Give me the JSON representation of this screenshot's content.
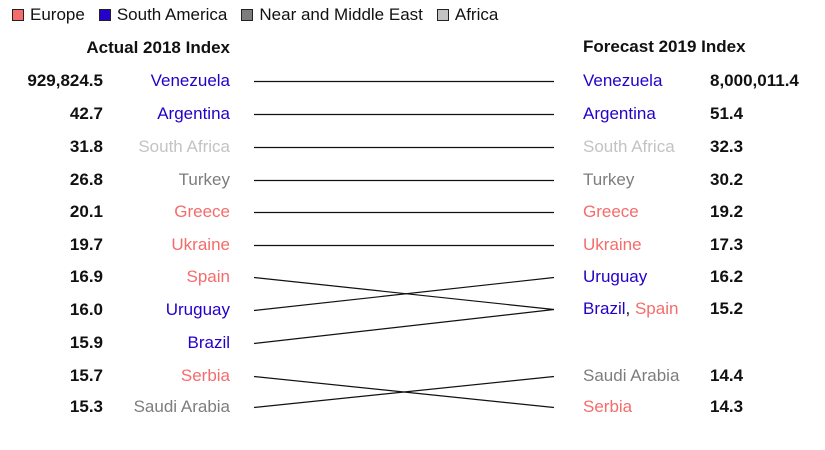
{
  "colors": {
    "Europe": "#f46c6c",
    "South America": "#2400c8",
    "Near and Middle East": "#7d7d7d",
    "Africa": "#c3c3c3"
  },
  "legend": [
    {
      "label": "Europe",
      "color": "#f46c6c"
    },
    {
      "label": "South America",
      "color": "#2400c8"
    },
    {
      "label": "Near and Middle East",
      "color": "#7d7d7d"
    },
    {
      "label": "Africa",
      "color": "#c3c3c3"
    }
  ],
  "chart_data": {
    "type": "slope",
    "left_header": "Actual 2018 Index",
    "right_header": "Forecast 2019 Index",
    "legend_placement": "top-left",
    "left": [
      {
        "value": "929,824.5",
        "country": "Venezuela",
        "region": "South America"
      },
      {
        "value": "42.7",
        "country": "Argentina",
        "region": "South America"
      },
      {
        "value": "31.8",
        "country": "South Africa",
        "region": "Africa"
      },
      {
        "value": "26.8",
        "country": "Turkey",
        "region": "Near and Middle East"
      },
      {
        "value": "20.1",
        "country": "Greece",
        "region": "Europe"
      },
      {
        "value": "19.7",
        "country": "Ukraine",
        "region": "Europe"
      },
      {
        "value": "16.9",
        "country": "Spain",
        "region": "Europe"
      },
      {
        "value": "16.0",
        "country": "Uruguay",
        "region": "South America"
      },
      {
        "value": "15.9",
        "country": "Brazil",
        "region": "South America"
      },
      {
        "value": "15.7",
        "country": "Serbia",
        "region": "Europe"
      },
      {
        "value": "15.3",
        "country": "Saudi Arabia",
        "region": "Near and Middle East"
      }
    ],
    "right": [
      {
        "value": "8,000,011.4",
        "names": [
          {
            "country": "Venezuela",
            "region": "South America"
          }
        ]
      },
      {
        "value": "51.4",
        "names": [
          {
            "country": "Argentina",
            "region": "South America"
          }
        ]
      },
      {
        "value": "32.3",
        "names": [
          {
            "country": "South Africa",
            "region": "Africa"
          }
        ]
      },
      {
        "value": "30.2",
        "names": [
          {
            "country": "Turkey",
            "region": "Near and Middle East"
          }
        ]
      },
      {
        "value": "19.2",
        "names": [
          {
            "country": "Greece",
            "region": "Europe"
          }
        ]
      },
      {
        "value": "17.3",
        "names": [
          {
            "country": "Ukraine",
            "region": "Europe"
          }
        ]
      },
      {
        "value": "16.2",
        "names": [
          {
            "country": "Uruguay",
            "region": "South America"
          }
        ]
      },
      {
        "value": "15.2",
        "names": [
          {
            "country": "Brazil",
            "region": "South America"
          },
          {
            "country": "Spain",
            "region": "Europe"
          }
        ]
      },
      {
        "value": "14.4",
        "names": [
          {
            "country": "Saudi Arabia",
            "region": "Near and Middle East"
          }
        ]
      },
      {
        "value": "14.3",
        "names": [
          {
            "country": "Serbia",
            "region": "Europe"
          }
        ]
      }
    ],
    "links": [
      {
        "from": 0,
        "to": 0
      },
      {
        "from": 1,
        "to": 1
      },
      {
        "from": 2,
        "to": 2
      },
      {
        "from": 3,
        "to": 3
      },
      {
        "from": 4,
        "to": 4
      },
      {
        "from": 5,
        "to": 5
      },
      {
        "from": 6,
        "to": 7
      },
      {
        "from": 7,
        "to": 6
      },
      {
        "from": 8,
        "to": 7
      },
      {
        "from": 9,
        "to": 9
      },
      {
        "from": 10,
        "to": 8
      }
    ]
  }
}
